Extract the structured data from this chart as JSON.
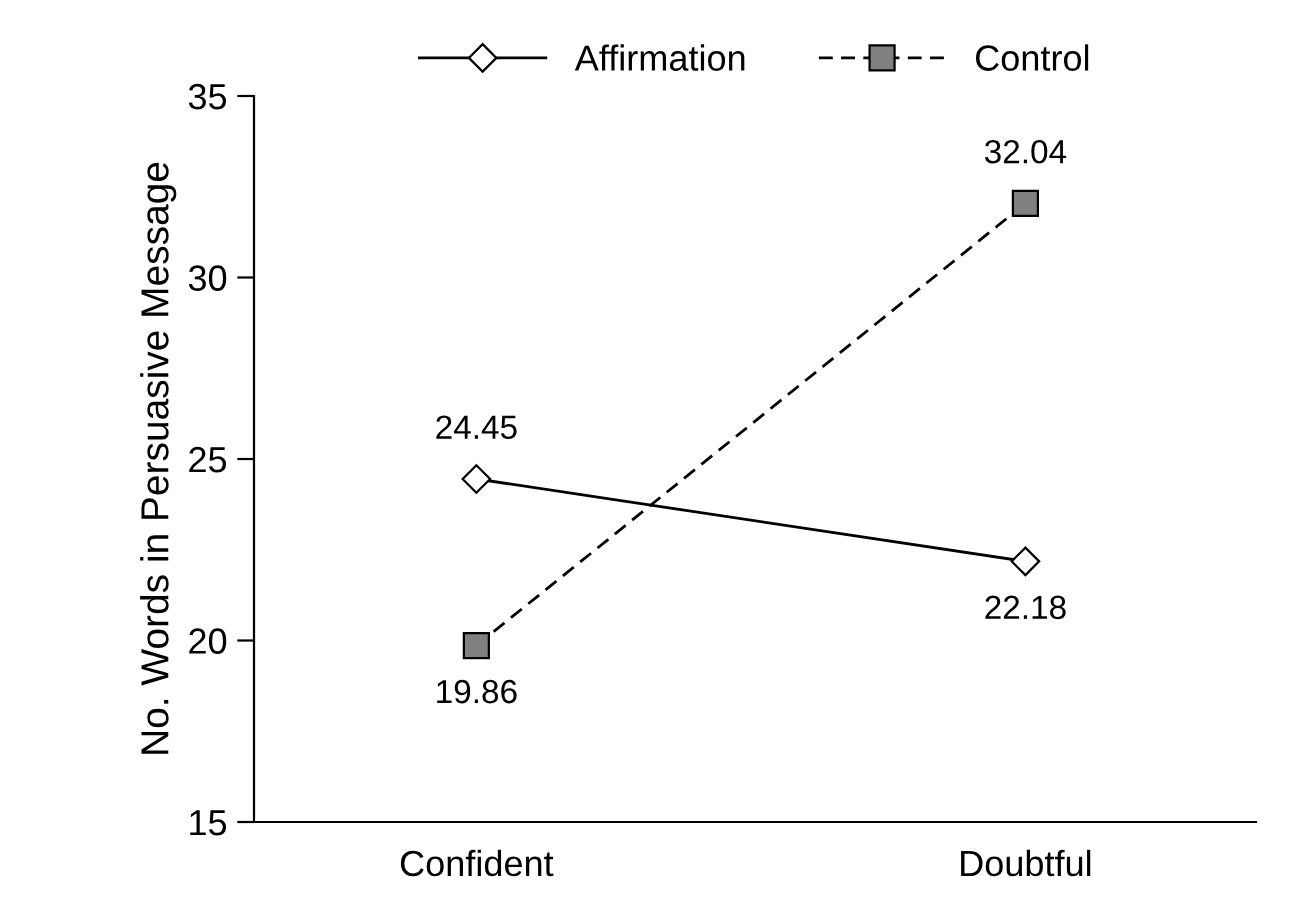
{
  "chart_data": {
    "type": "line",
    "ylabel": "No. Words in Persuasive Message",
    "categories": [
      "Confident",
      "Doubtful"
    ],
    "series": [
      {
        "name": "Affirmation",
        "color": "#ffffff",
        "values": [
          24.45,
          22.18
        ],
        "marker": "diamond",
        "line_style": "solid"
      },
      {
        "name": "Control",
        "color": "#808080",
        "values": [
          19.86,
          32.04
        ],
        "marker": "square",
        "line_style": "dashed"
      }
    ],
    "ylim": [
      15,
      35
    ],
    "yticks": [
      15,
      20,
      25,
      30,
      35
    ],
    "data_labels": true,
    "legend": "top",
    "grid": false
  }
}
